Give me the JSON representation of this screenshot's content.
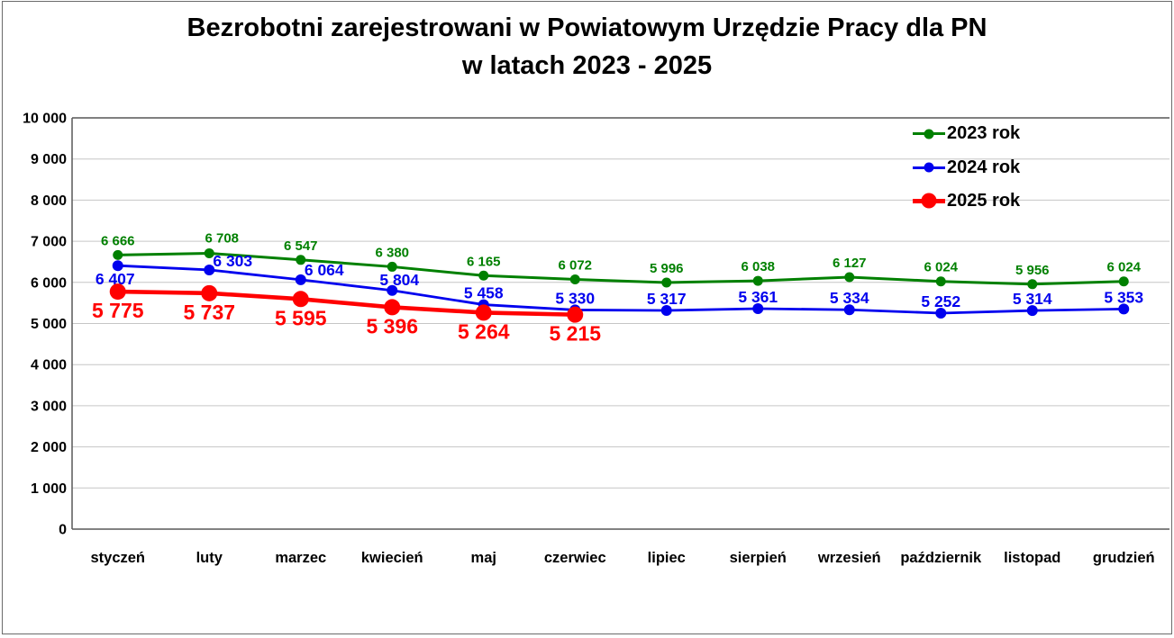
{
  "title": {
    "line1": "Bezrobotni zarejestrowani w Powiatowym Urzędzie Pracy dla PN",
    "line2": "w latach 2023 - 2025"
  },
  "legend": {
    "position": "top-right",
    "items": [
      {
        "label": "2023 rok",
        "color": "#008000",
        "marker": "small-dot",
        "line_width": 3
      },
      {
        "label": "2024 rok",
        "color": "#0000EE",
        "marker": "small-dot",
        "line_width": 3
      },
      {
        "label": "2025 rok",
        "color": "#FF0000",
        "marker": "large-dot",
        "line_width": 4.6
      }
    ]
  },
  "chart_data": {
    "type": "line",
    "categories": [
      "styczeń",
      "luty",
      "marzec",
      "kwiecień",
      "maj",
      "czerwiec",
      "lipiec",
      "sierpień",
      "wrzesień",
      "październik",
      "listopad",
      "grudzień"
    ],
    "series": [
      {
        "name": "2023 rok",
        "color": "#008000",
        "values": [
          6666,
          6708,
          6547,
          6380,
          6165,
          6072,
          5996,
          6038,
          6127,
          6024,
          5956,
          6024
        ],
        "line_width": 3,
        "marker_radius": 5.5,
        "label_font_size": 15,
        "label_default_offset": [
          0,
          -11
        ],
        "label_overrides": {
          "1": [
            14,
            -12
          ]
        }
      },
      {
        "name": "2024 rok",
        "color": "#0000EE",
        "values": [
          6407,
          6303,
          6064,
          5804,
          5458,
          5330,
          5317,
          5361,
          5334,
          5252,
          5314,
          5353
        ],
        "line_width": 2.8,
        "marker_radius": 6,
        "label_font_size": 17.5,
        "label_default_offset": [
          0,
          -7
        ],
        "label_overrides": {
          "0": [
            -3,
            21
          ],
          "1": [
            26,
            -4
          ],
          "2": [
            26,
            -5
          ],
          "3": [
            8,
            -6
          ]
        }
      },
      {
        "name": "2025 rok",
        "color": "#FF0000",
        "values": [
          5775,
          5737,
          5595,
          5396,
          5264,
          5215
        ],
        "line_width": 4.6,
        "marker_radius": 9,
        "label_font_size": 23,
        "label_default_offset": [
          0,
          29
        ],
        "label_overrides": {}
      }
    ],
    "ylim": [
      0,
      10000
    ],
    "ytick_step": 1000,
    "y_tick_labels": [
      "0",
      "1 000",
      "2 000",
      "3 000",
      "4 000",
      "5 000",
      "6 000",
      "7 000",
      "8 000",
      "9 000",
      "10 000"
    ],
    "grid": true,
    "number_format": "space-thousands",
    "data_labels": true,
    "xlabel": "",
    "ylabel": ""
  },
  "colors": {
    "background": "#FFFFFF",
    "grid": "#C6C6C6",
    "axis": "#595959",
    "plot_top_border": "#808080",
    "text": "#000000",
    "outer_border": "#6B6B6B"
  }
}
